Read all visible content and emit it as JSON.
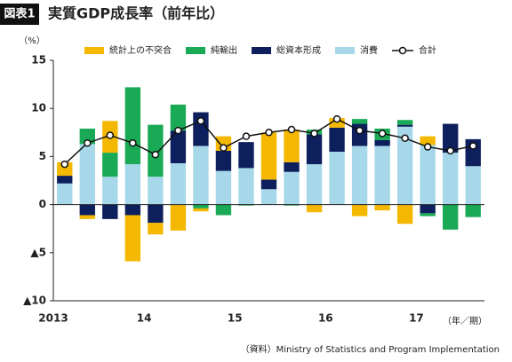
{
  "chart_data": {
    "type": "stacked-bar-line",
    "badge": "図表1",
    "title": "実質GDP成長率（前年比）",
    "y_unit": "（%）",
    "x_unit": "（年／期）",
    "source": "（資料）Ministry of Statistics and Program Implementation",
    "categories": [
      "2013",
      null,
      null,
      null,
      "14",
      null,
      null,
      null,
      "15",
      null,
      null,
      null,
      "16",
      null,
      null,
      null,
      "17",
      null,
      null
    ],
    "series": [
      {
        "name": "統計上の不突合",
        "color": "#f5b800",
        "values": [
          1.4,
          -0.4,
          3.3,
          -4.8,
          -1.2,
          -2.7,
          -0.3,
          1.5,
          0,
          4.9,
          3.4,
          -0.8,
          1.0,
          -1.2,
          -0.6,
          -2.0,
          0.9,
          0,
          0
        ]
      },
      {
        "name": "純輸出",
        "color": "#1aaa55",
        "values": [
          0,
          1.6,
          2.5,
          8.0,
          5.4,
          2.7,
          -0.4,
          -1.1,
          -0.1,
          0,
          -0.1,
          0.5,
          0,
          0.5,
          1.2,
          0.5,
          -0.3,
          -2.6,
          -1.3
        ]
      },
      {
        "name": "総資本形成",
        "color": "#0d1f5c",
        "values": [
          0.8,
          -1.1,
          -1.5,
          -1.1,
          -1.9,
          3.4,
          3.5,
          2.1,
          2.7,
          1.0,
          1.0,
          3.1,
          2.5,
          2.3,
          0.6,
          0.2,
          -0.9,
          3.0,
          2.8
        ]
      },
      {
        "name": "消費",
        "color": "#a6d8ea",
        "values": [
          2.2,
          6.3,
          2.9,
          4.2,
          2.9,
          4.3,
          6.1,
          3.5,
          3.8,
          1.6,
          3.4,
          4.2,
          5.5,
          6.1,
          6.1,
          8.1,
          6.2,
          5.4,
          4.0
        ]
      }
    ],
    "line": {
      "name": "合計",
      "color": "#111111",
      "values": [
        4.2,
        6.4,
        7.2,
        6.4,
        5.2,
        7.7,
        8.7,
        5.9,
        7.1,
        7.5,
        7.8,
        7.4,
        8.9,
        7.7,
        7.4,
        6.9,
        6.0,
        5.6,
        6.1
      ]
    },
    "ylim": [
      -10,
      15
    ],
    "yticks": [
      {
        "value": -10,
        "label": "▲10"
      },
      {
        "value": -5,
        "label": "▲5"
      },
      0,
      5,
      10,
      15
    ]
  }
}
